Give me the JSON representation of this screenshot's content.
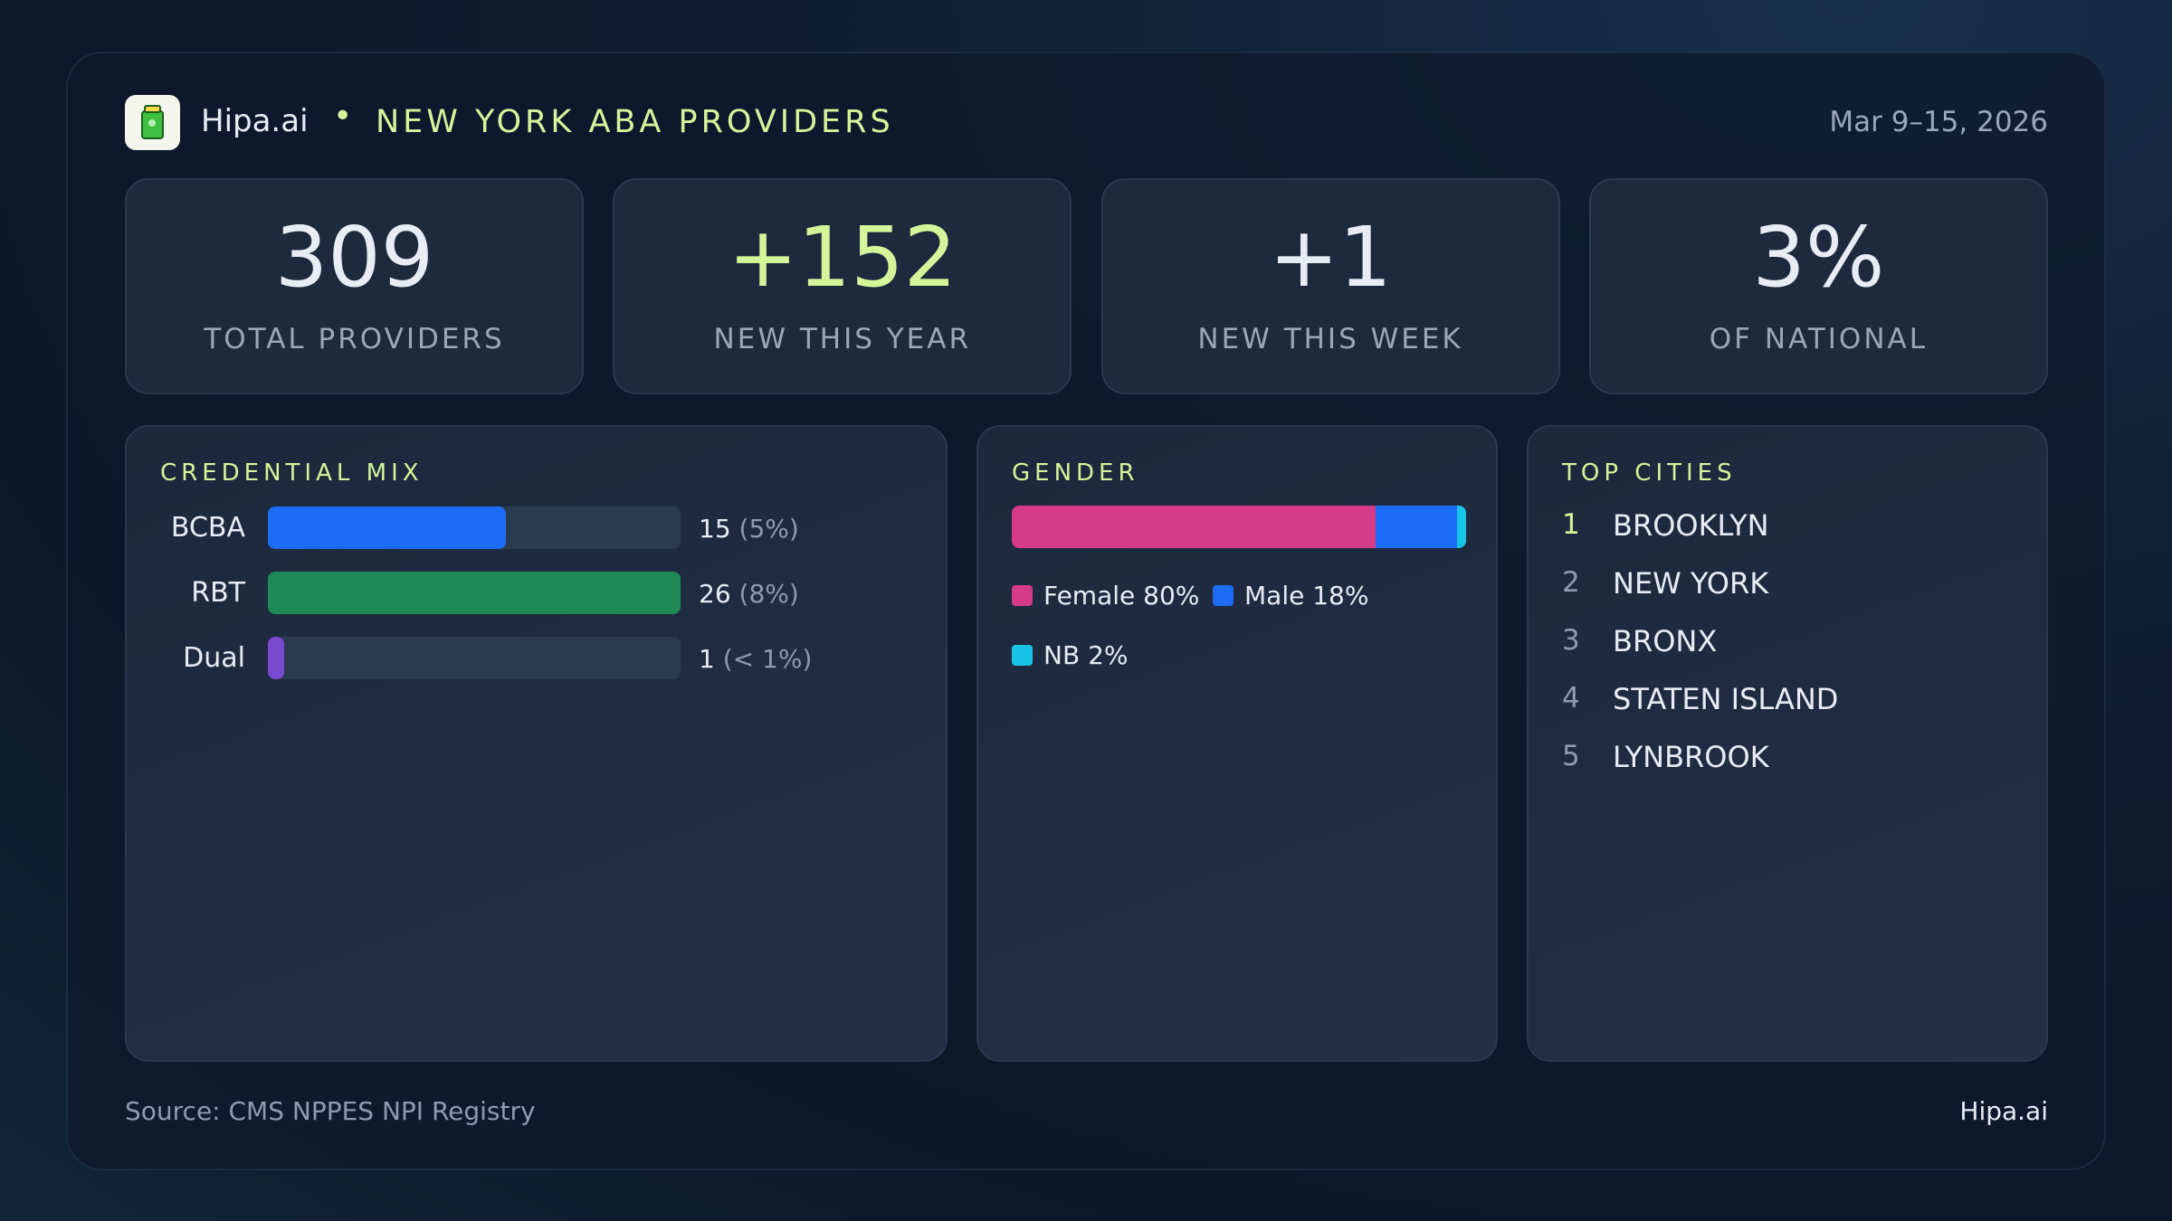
{
  "header": {
    "brand": "Hipa.ai",
    "title": "NEW YORK ABA PROVIDERS",
    "date": "Mar 9–15, 2026"
  },
  "kpis": [
    {
      "value": "309",
      "label": "TOTAL PROVIDERS"
    },
    {
      "value": "+152",
      "label": "NEW THIS YEAR"
    },
    {
      "value": "+1",
      "label": "NEW THIS WEEK"
    },
    {
      "value": "3%",
      "label": "OF NATIONAL"
    }
  ],
  "chart_data": [
    {
      "type": "bar",
      "orientation": "horizontal",
      "title": "CREDENTIAL MIX",
      "categories": [
        "BCBA",
        "RBT",
        "Dual"
      ],
      "values": [
        15,
        26,
        1
      ],
      "share_labels": [
        "(5%)",
        "(8%)",
        "(< 1%)"
      ],
      "colors": [
        "#1d6cf5",
        "#1f8a55",
        "#7b48d0"
      ]
    },
    {
      "type": "stacked-bar",
      "orientation": "horizontal",
      "title": "GENDER",
      "series": [
        {
          "name": "Female",
          "color": "#d63a8a",
          "values": [
            80
          ],
          "value_labels": [
            "80%"
          ]
        },
        {
          "name": "Male",
          "color": "#1d6cf5",
          "values": [
            18
          ],
          "value_labels": [
            "18%"
          ]
        },
        {
          "name": "NB",
          "color": "#17c4e6",
          "values": [
            2
          ],
          "value_labels": [
            "2%"
          ]
        }
      ]
    }
  ],
  "top_cities": {
    "title": "TOP CITIES",
    "items": [
      {
        "rank": "1",
        "name": "BROOKLYN"
      },
      {
        "rank": "2",
        "name": "NEW YORK"
      },
      {
        "rank": "3",
        "name": "BRONX"
      },
      {
        "rank": "4",
        "name": "STATEN ISLAND"
      },
      {
        "rank": "5",
        "name": "LYNBROOK"
      }
    ]
  },
  "footer": {
    "source": "Source: CMS NPPES NPI Registry",
    "brand": "Hipa.ai"
  }
}
